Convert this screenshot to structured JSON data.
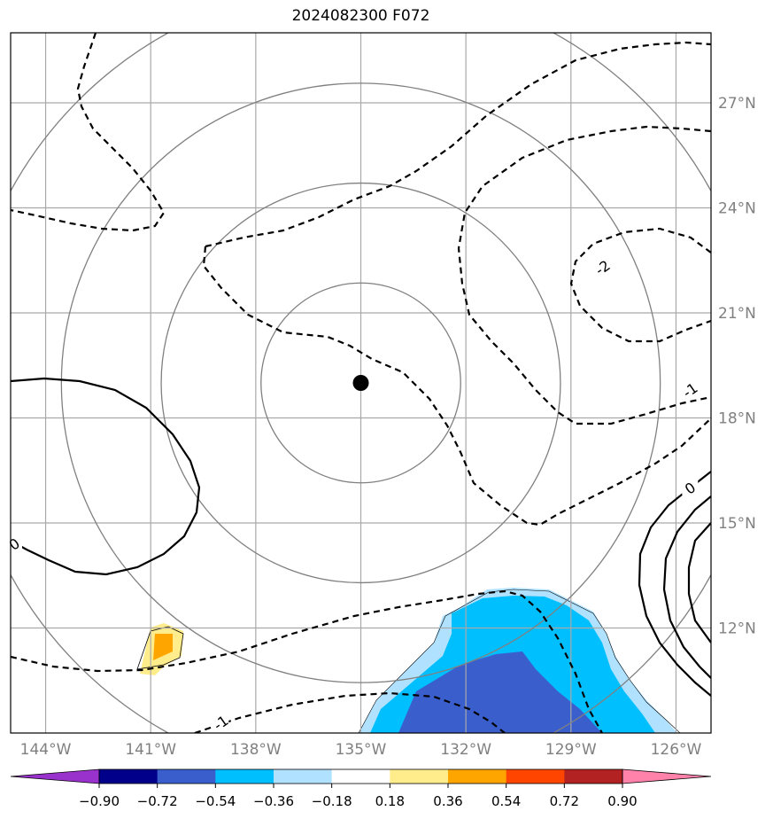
{
  "title": "2024082300 F072",
  "map": {
    "lon_range": [
      -145.0,
      -125.0
    ],
    "lat_range": [
      9.0,
      29.0
    ],
    "lon_ticks": [
      {
        "value": -144,
        "label": "144°W"
      },
      {
        "value": -141,
        "label": "141°W"
      },
      {
        "value": -138,
        "label": "138°W"
      },
      {
        "value": -135,
        "label": "135°W"
      },
      {
        "value": -132,
        "label": "132°W"
      },
      {
        "value": -129,
        "label": "129°W"
      },
      {
        "value": -126,
        "label": "126°W"
      }
    ],
    "lat_ticks": [
      {
        "value": 12,
        "label": "12°N"
      },
      {
        "value": 15,
        "label": "15°N"
      },
      {
        "value": 18,
        "label": "18°N"
      },
      {
        "value": 21,
        "label": "21°N"
      },
      {
        "value": 24,
        "label": "24°N"
      },
      {
        "value": 27,
        "label": "27°N"
      }
    ],
    "center_marker": {
      "lon": -135.0,
      "lat": 19.0
    },
    "range_rings_deg": [
      2.85,
      5.7,
      8.55,
      11.4
    ],
    "contour_labels": [
      {
        "text": "-2",
        "lon": -128.1,
        "lat": 22.3
      },
      {
        "text": "-1",
        "lon": -125.6,
        "lat": 18.8
      },
      {
        "text": "0",
        "lon": -125.6,
        "lat": 16.0
      },
      {
        "text": "0",
        "lon": -144.9,
        "lat": 14.4
      },
      {
        "text": "-1",
        "lon": -139.0,
        "lat": 9.3
      }
    ]
  },
  "colorbar": {
    "levels": [
      "−0.90",
      "−0.72",
      "−0.54",
      "−0.36",
      "−0.18",
      "0.18",
      "0.36",
      "0.54",
      "0.72",
      "0.90"
    ],
    "colors": [
      "#9932cc",
      "#00008b",
      "#3a5fcd",
      "#00bfff",
      "#b0e2ff",
      "#ffffff",
      "#ffec8b",
      "#ffa500",
      "#ff4500",
      "#b22222",
      "#ff82ab"
    ]
  }
}
